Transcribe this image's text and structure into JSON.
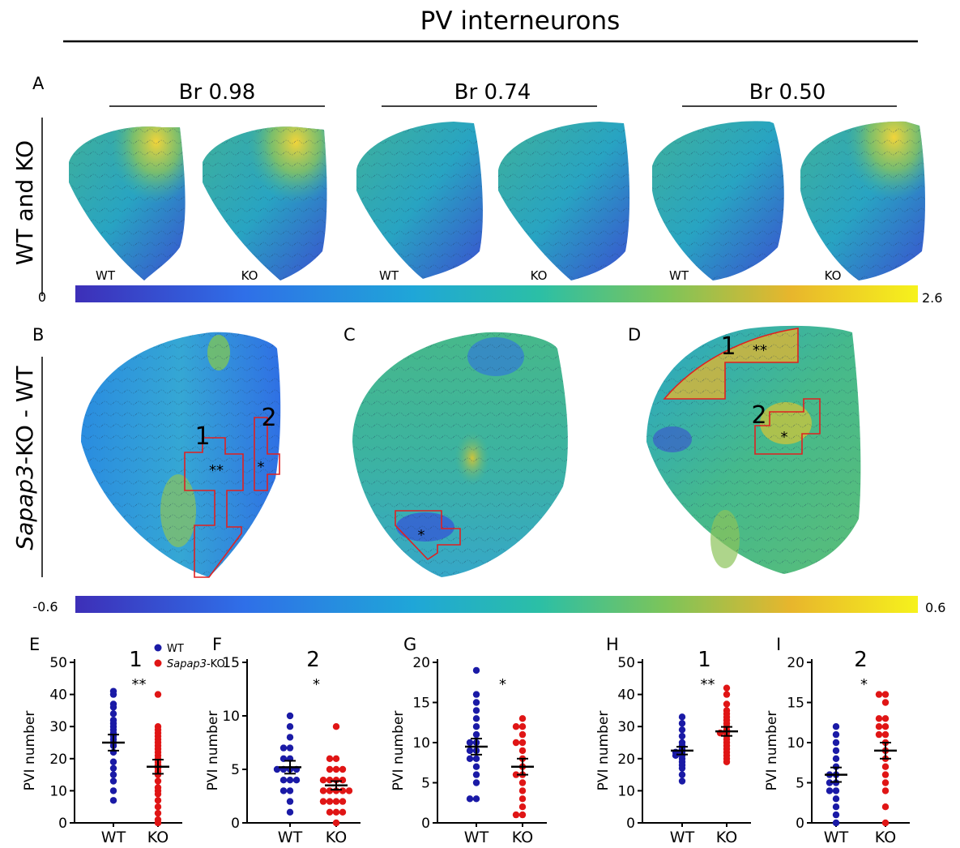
{
  "figure": {
    "title": "PV interneurons",
    "row_labels": {
      "a": "WT and KO",
      "b_italic": "Sapap3",
      "b_rest": "-KO - WT"
    },
    "panel_letters": [
      "A",
      "B",
      "C",
      "D",
      "E",
      "F",
      "G",
      "H",
      "I"
    ],
    "brain_levels": [
      "Br 0.98",
      "Br 0.74",
      "Br 0.50"
    ],
    "map_labels": [
      "WT",
      "KO",
      "WT",
      "KO",
      "WT",
      "KO"
    ],
    "colorbar_top": {
      "min": "0",
      "max": "2.6"
    },
    "colorbar_bottom": {
      "min": "-0.6",
      "max": "0.6"
    },
    "region_annotations": [
      {
        "panel": "B",
        "number": "1",
        "stars": "**"
      },
      {
        "panel": "B",
        "number": "2",
        "stars": "*"
      },
      {
        "panel": "C",
        "number": "",
        "stars": "*"
      },
      {
        "panel": "D",
        "number": "1",
        "stars": "**"
      },
      {
        "panel": "D",
        "number": "2",
        "stars": "*"
      }
    ],
    "colors": {
      "wt": "#1a1aa6",
      "ko": "#e01515",
      "region": "#e02020"
    }
  },
  "legend": {
    "wt": "WT",
    "ko_italic": "Sapap3",
    "ko_rest": "-KO"
  },
  "chart_data": [
    {
      "type": "scatter",
      "panel": "E",
      "region": "1",
      "sig": "**",
      "ylabel": "PVI number",
      "categories": [
        "WT",
        "KO"
      ],
      "yticks": [
        0,
        10,
        20,
        30,
        40,
        50
      ],
      "ylim": [
        0,
        50
      ],
      "series": [
        {
          "name": "WT",
          "color": "#1a1aa6",
          "mean": 25,
          "sem": 2.5,
          "values": [
            41,
            40,
            37,
            36,
            34,
            32,
            31,
            30,
            29,
            28,
            27,
            26,
            25,
            24,
            22,
            19,
            17,
            15,
            13,
            10,
            7
          ]
        },
        {
          "name": "KO",
          "color": "#e01515",
          "mean": 17.5,
          "sem": 2.2,
          "values": [
            40,
            30,
            29,
            28,
            27,
            26,
            25,
            24,
            23,
            22,
            21,
            20,
            19,
            18,
            17,
            16,
            15,
            13,
            11,
            10,
            9,
            7,
            5,
            3,
            1,
            0
          ]
        }
      ]
    },
    {
      "type": "scatter",
      "panel": "F",
      "region": "2",
      "sig": "*",
      "ylabel": "PVI number",
      "categories": [
        "WT",
        "KO"
      ],
      "yticks": [
        0,
        5,
        10,
        15
      ],
      "ylim": [
        0,
        15
      ],
      "series": [
        {
          "name": "WT",
          "color": "#1a1aa6",
          "mean": 5.2,
          "sem": 0.6,
          "values": [
            10,
            9,
            8,
            7,
            7,
            6,
            6,
            5,
            5,
            5,
            5,
            4,
            4,
            4,
            3,
            3,
            2,
            1
          ]
        },
        {
          "name": "KO",
          "color": "#e01515",
          "mean": 3.5,
          "sem": 0.4,
          "values": [
            9,
            6,
            6,
            5,
            5,
            5,
            4,
            4,
            4,
            4,
            3,
            3,
            3,
            3,
            3,
            2,
            2,
            2,
            2,
            1,
            1,
            1,
            0
          ]
        }
      ]
    },
    {
      "type": "scatter",
      "panel": "G",
      "region": "",
      "sig": "*",
      "ylabel": "PVI number",
      "categories": [
        "WT",
        "KO"
      ],
      "yticks": [
        0,
        5,
        10,
        15,
        20
      ],
      "ylim": [
        0,
        20
      ],
      "series": [
        {
          "name": "WT",
          "color": "#1a1aa6",
          "mean": 9.5,
          "sem": 1.0,
          "values": [
            19,
            16,
            15,
            14,
            13,
            12,
            11,
            10,
            10,
            9,
            9,
            8,
            8,
            7,
            6,
            5,
            3,
            3
          ]
        },
        {
          "name": "KO",
          "color": "#e01515",
          "mean": 7,
          "sem": 1.0,
          "values": [
            13,
            12,
            12,
            11,
            10,
            10,
            9,
            8,
            7,
            6,
            6,
            5,
            4,
            3,
            2,
            1,
            1
          ]
        }
      ]
    },
    {
      "type": "scatter",
      "panel": "H",
      "region": "1",
      "sig": "**",
      "ylabel": "PVI number",
      "categories": [
        "WT",
        "KO"
      ],
      "yticks": [
        0,
        10,
        20,
        30,
        40,
        50
      ],
      "ylim": [
        0,
        50
      ],
      "series": [
        {
          "name": "WT",
          "color": "#1a1aa6",
          "mean": 22.5,
          "sem": 1.2,
          "values": [
            33,
            31,
            29,
            27,
            25,
            24,
            23,
            22,
            22,
            21,
            21,
            20,
            19,
            18,
            17,
            15,
            13
          ]
        },
        {
          "name": "KO",
          "color": "#e01515",
          "mean": 28.5,
          "sem": 1.4,
          "values": [
            42,
            40,
            37,
            35,
            34,
            33,
            32,
            31,
            30,
            29,
            28,
            28,
            27,
            26,
            25,
            24,
            23,
            22,
            21,
            20,
            19
          ]
        }
      ]
    },
    {
      "type": "scatter",
      "panel": "I",
      "region": "2",
      "sig": "*",
      "ylabel": "PVI number",
      "categories": [
        "WT",
        "KO"
      ],
      "yticks": [
        0,
        5,
        10,
        15,
        20
      ],
      "ylim": [
        0,
        20
      ],
      "series": [
        {
          "name": "WT",
          "color": "#1a1aa6",
          "mean": 6,
          "sem": 0.9,
          "values": [
            12,
            11,
            10,
            9,
            8,
            7,
            6,
            6,
            5,
            5,
            4,
            4,
            3,
            2,
            1,
            0
          ]
        },
        {
          "name": "KO",
          "color": "#e01515",
          "mean": 9,
          "sem": 1.0,
          "values": [
            16,
            16,
            15,
            13,
            13,
            12,
            12,
            11,
            11,
            10,
            9,
            8,
            7,
            6,
            5,
            4,
            2,
            0
          ]
        }
      ]
    }
  ]
}
